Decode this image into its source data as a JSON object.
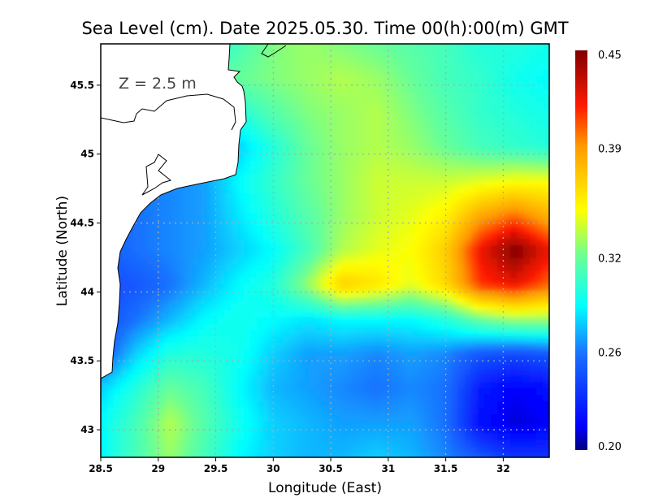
{
  "chart_data": {
    "type": "heatmap",
    "title": "Sea Level (cm). Date 2025.05.30. Time 00(h):00(m) GMT",
    "annotation": "Z = 2.5 m",
    "xlabel": "Longitude (East)",
    "ylabel": "Latitude (North)",
    "xlim": [
      28.5,
      32.4
    ],
    "ylim": [
      42.8,
      45.8
    ],
    "xticks": [
      "28.5",
      "29",
      "29.5",
      "30",
      "30.5",
      "31",
      "31.5",
      "32"
    ],
    "xtick_values": [
      28.5,
      29,
      29.5,
      30,
      30.5,
      31,
      31.5,
      32
    ],
    "yticks": [
      "43",
      "43.5",
      "44",
      "44.5",
      "45",
      "45.5"
    ],
    "ytick_values": [
      43,
      43.5,
      44,
      44.5,
      45,
      45.5
    ],
    "grid": true,
    "colorbar": {
      "range": [
        0.2,
        0.45
      ],
      "ticks": [
        "0.45",
        "0.39",
        "0.32",
        "0.26",
        "0.20"
      ],
      "tick_values": [
        0.45,
        0.39,
        0.32,
        0.26,
        0.2
      ],
      "colors": [
        [
          0.2,
          "#00007f"
        ],
        [
          0.215,
          "#0000ff"
        ],
        [
          0.26,
          "#1a70ff"
        ],
        [
          0.29,
          "#00ffff"
        ],
        [
          0.32,
          "#66ff99"
        ],
        [
          0.35,
          "#ffff00"
        ],
        [
          0.39,
          "#ff9a00"
        ],
        [
          0.415,
          "#ff1a00"
        ],
        [
          0.45,
          "#7f0000"
        ]
      ]
    },
    "grid_lon": [
      28.5,
      28.8,
      29.1,
      29.4,
      29.7,
      30.0,
      30.3,
      30.6,
      30.9,
      31.2,
      31.5,
      31.8,
      32.1,
      32.4
    ],
    "grid_lat": [
      45.8,
      45.55,
      45.3,
      45.05,
      44.8,
      44.55,
      44.3,
      44.05,
      43.8,
      43.55,
      43.3,
      43.05,
      42.8
    ],
    "values": [
      [
        0.3,
        0.3,
        0.3,
        0.3,
        0.31,
        0.325,
        0.33,
        0.325,
        0.32,
        0.315,
        0.31,
        0.3,
        0.3,
        0.295
      ],
      [
        0.3,
        0.3,
        0.3,
        0.31,
        0.32,
        0.325,
        0.33,
        0.335,
        0.33,
        0.32,
        0.31,
        0.305,
        0.295,
        0.29
      ],
      [
        0.29,
        0.29,
        0.29,
        0.29,
        0.3,
        0.315,
        0.325,
        0.33,
        0.335,
        0.325,
        0.315,
        0.305,
        0.3,
        0.295
      ],
      [
        0.27,
        0.27,
        0.27,
        0.27,
        0.28,
        0.3,
        0.32,
        0.33,
        0.335,
        0.33,
        0.32,
        0.31,
        0.305,
        0.3
      ],
      [
        0.26,
        0.26,
        0.265,
        0.27,
        0.29,
        0.305,
        0.32,
        0.33,
        0.34,
        0.34,
        0.34,
        0.345,
        0.35,
        0.35
      ],
      [
        0.255,
        0.26,
        0.265,
        0.27,
        0.285,
        0.3,
        0.315,
        0.33,
        0.34,
        0.345,
        0.355,
        0.385,
        0.4,
        0.38
      ],
      [
        0.25,
        0.26,
        0.265,
        0.27,
        0.28,
        0.29,
        0.31,
        0.335,
        0.345,
        0.35,
        0.37,
        0.42,
        0.45,
        0.42
      ],
      [
        0.245,
        0.25,
        0.26,
        0.275,
        0.29,
        0.3,
        0.33,
        0.37,
        0.36,
        0.345,
        0.365,
        0.41,
        0.42,
        0.4
      ],
      [
        0.245,
        0.26,
        0.275,
        0.29,
        0.295,
        0.29,
        0.285,
        0.29,
        0.29,
        0.29,
        0.3,
        0.32,
        0.33,
        0.33
      ],
      [
        0.25,
        0.28,
        0.3,
        0.3,
        0.295,
        0.28,
        0.27,
        0.27,
        0.265,
        0.27,
        0.265,
        0.25,
        0.245,
        0.25
      ],
      [
        0.28,
        0.3,
        0.32,
        0.31,
        0.29,
        0.275,
        0.27,
        0.265,
        0.26,
        0.265,
        0.26,
        0.225,
        0.215,
        0.22
      ],
      [
        0.29,
        0.31,
        0.335,
        0.315,
        0.295,
        0.28,
        0.275,
        0.27,
        0.27,
        0.27,
        0.26,
        0.22,
        0.21,
        0.215
      ],
      [
        0.29,
        0.31,
        0.33,
        0.31,
        0.29,
        0.28,
        0.275,
        0.275,
        0.28,
        0.275,
        0.265,
        0.25,
        0.235,
        0.235
      ]
    ]
  }
}
